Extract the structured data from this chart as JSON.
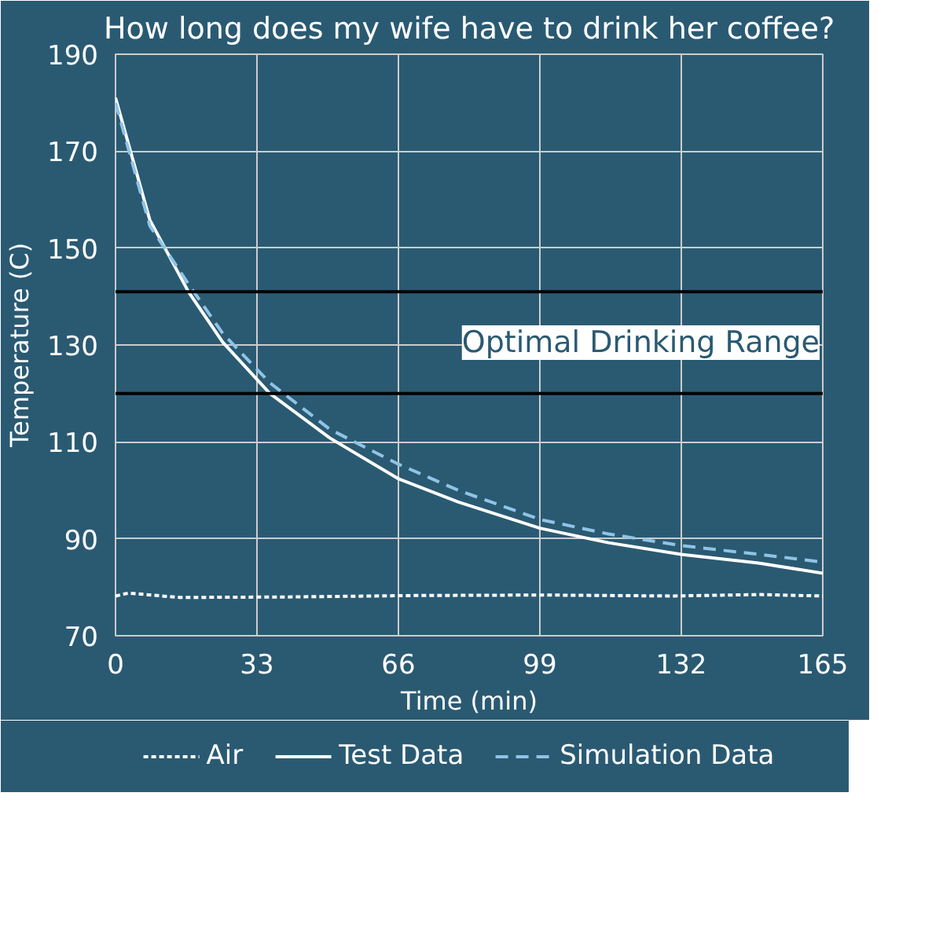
{
  "chart_data": {
    "type": "line",
    "title": "How long does my wife have to drink her coffee?",
    "xlabel": "Time (min)",
    "ylabel": "Temperature (C)",
    "xlim": [
      0,
      165
    ],
    "xticks": [
      0,
      33,
      66,
      99,
      132,
      165
    ],
    "ylim": [
      70,
      190
    ],
    "yticks": [
      70,
      90,
      110,
      130,
      150,
      170,
      190
    ],
    "grid": true,
    "legend": "bottom",
    "marker": "none",
    "series": [
      {
        "name": "Air",
        "color": "#ffffff",
        "line_style": "dotted",
        "x": [
          0,
          3,
          15,
          40,
          70,
          100,
          130,
          150,
          165
        ],
        "values": [
          78.2,
          78.8,
          77.9,
          78.0,
          78.3,
          78.4,
          78.2,
          78.5,
          78.2
        ]
      },
      {
        "name": "Test Data",
        "color": "#ffffff",
        "line_style": "solid",
        "x": [
          0,
          8,
          17,
          25,
          36,
          50,
          66,
          80,
          99,
          115,
          132,
          150,
          165
        ],
        "values": [
          181,
          155.8,
          141,
          130.6,
          120,
          110.8,
          102.4,
          97.6,
          92.2,
          89.2,
          86.8,
          85,
          82.9
        ]
      },
      {
        "name": "Simulation Data",
        "color": "#8fc4e6",
        "line_style": "dashed",
        "x": [
          0,
          8,
          17,
          25,
          36,
          50,
          66,
          80,
          99,
          115,
          132,
          150,
          165
        ],
        "values": [
          180,
          154.6,
          142.6,
          132.4,
          122.2,
          112.6,
          105.4,
          100,
          94,
          91,
          88.6,
          86.8,
          85.2
        ]
      }
    ],
    "ref_lines": [
      {
        "axis": "y",
        "value": 141,
        "label": null,
        "color": "#000000"
      },
      {
        "axis": "y",
        "value": 120,
        "label": null,
        "color": "#000000"
      }
    ],
    "annotations": [
      "Optimal Drinking Range"
    ]
  }
}
